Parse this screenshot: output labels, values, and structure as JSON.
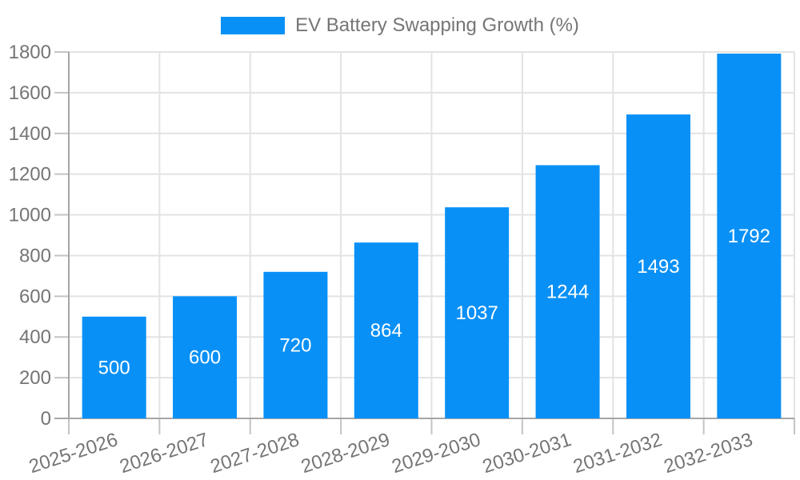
{
  "legend": {
    "label": "EV Battery Swapping Growth (%)"
  },
  "colors": {
    "bar": "#0990f6",
    "grid": "#e3e3e3",
    "tick": "#c4c4c4",
    "axis": "#a6a6a6",
    "axis_label": "#757575",
    "value_label": "#ffffff",
    "background": "#ffffff"
  },
  "chart_data": {
    "type": "bar",
    "title": "EV Battery Swapping Growth (%)",
    "categories": [
      "2025-2026",
      "2026-2027",
      "2027-2028",
      "2028-2029",
      "2029-2030",
      "2030-2031",
      "2031-2032",
      "2032-2033"
    ],
    "values": [
      500,
      600,
      720,
      864,
      1037,
      1244,
      1493,
      1792
    ],
    "xlabel": "",
    "ylabel": "",
    "ylim": [
      0,
      1800
    ],
    "ytick_step": 200,
    "ytick_labels": [
      "0",
      "200",
      "400",
      "600",
      "800",
      "1000",
      "1200",
      "1400",
      "1600",
      "1800"
    ],
    "grid": true,
    "legend_position": "top",
    "value_label_position": "inside-center",
    "x_label_rotation_deg": -18
  }
}
